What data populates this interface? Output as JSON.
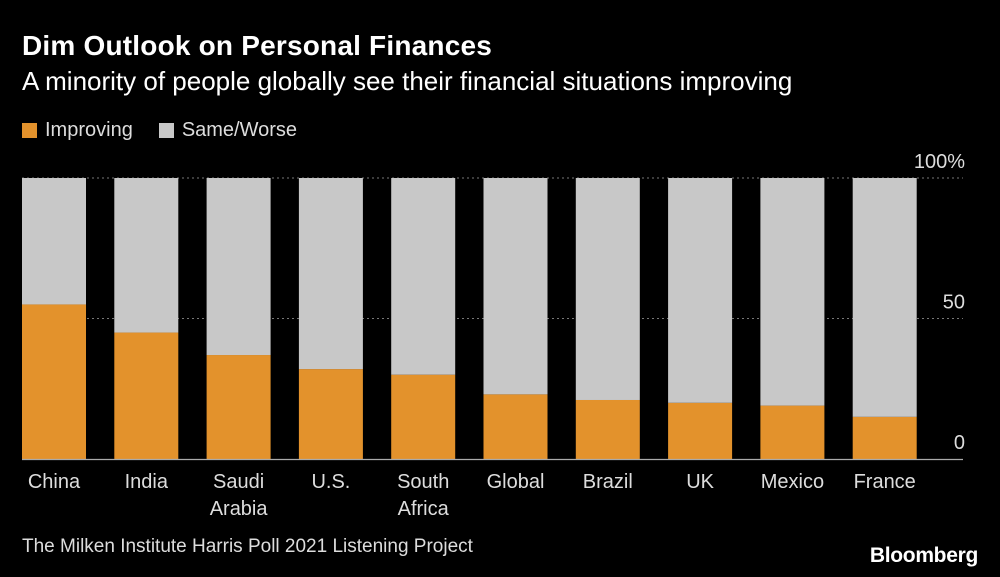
{
  "title": "Dim Outlook on Personal Finances",
  "subtitle": "A minority of people globally see their financial situations improving",
  "source": "The Milken Institute Harris Poll 2021 Listening Project",
  "brand": "Bloomberg",
  "colors": {
    "improving": "#e3922c",
    "same_worse": "#c8c8c8",
    "background": "#000000",
    "text": "#ffffff",
    "grid": "#777777"
  },
  "chart_data": {
    "type": "bar",
    "stacked": true,
    "orientation": "vertical",
    "categories": [
      [
        "China"
      ],
      [
        "India"
      ],
      [
        "Saudi",
        "Arabia"
      ],
      [
        "U.S."
      ],
      [
        "South",
        "Africa"
      ],
      [
        "Global"
      ],
      [
        "Brazil"
      ],
      [
        "UK"
      ],
      [
        "Mexico"
      ],
      [
        "France"
      ]
    ],
    "series": [
      {
        "name": "Improving",
        "color": "#e3922c",
        "values": [
          55,
          45,
          37,
          32,
          30,
          23,
          21,
          20,
          19,
          15
        ]
      },
      {
        "name": "Same/Worse",
        "color": "#c8c8c8",
        "values": [
          45,
          55,
          63,
          68,
          70,
          77,
          79,
          80,
          81,
          85
        ]
      }
    ],
    "ylim": [
      0,
      100
    ],
    "yticks": [
      0,
      50,
      100
    ],
    "ytick_labels": [
      "0",
      "50",
      "100%"
    ],
    "y_axis_side": "right",
    "grid": true,
    "legend_position": "top-left"
  }
}
